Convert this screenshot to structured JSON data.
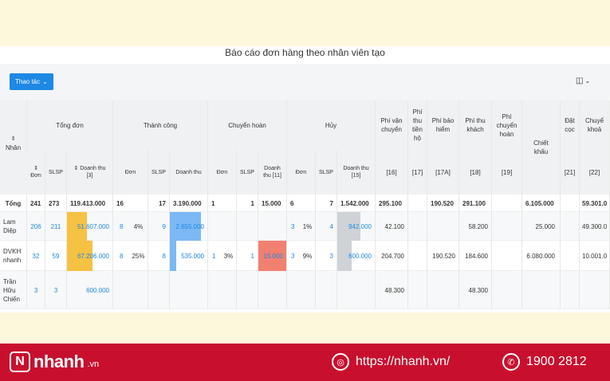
{
  "report": {
    "title": "Báo cáo đơn hàng theo nhân viên tạo",
    "action_button": "Thao tác",
    "columns_icon": "columns-icon"
  },
  "headers": {
    "employee": "Nhân viên",
    "total_orders": "Tổng đơn",
    "success": "Thành công",
    "returning": "Chuyển hoàn",
    "cancelled": "Hủy",
    "ship_fee": "Phí vận chuyển",
    "ship_fee_code": "[16]",
    "collect_fee": "Phí thu tiền hộ",
    "collect_fee_code": "[17]",
    "insurance_fee": "Phí bảo hiểm",
    "insurance_fee_code": "[17A]",
    "customer_fee": "Phí thu khách",
    "customer_fee_code": "[18]",
    "return_fee": "Phí chuyển hoàn",
    "return_fee_code": "[19]",
    "discount": "Chiết khấu",
    "deposit": "Đặt cọc",
    "deposit_code": "[21]",
    "transfer": "Chuyể khoả",
    "transfer_code": "[22]",
    "sub_order": "Đơn",
    "sub_slsp": "SLSP",
    "sub_revenue": "Doanh thu",
    "sub_revenue_3": "Doanh thu [3]",
    "sub_revenue_11": "Doanh thu [11]",
    "sub_revenue_15": "Doanh thu [15]"
  },
  "total_row": {
    "label": "Tổng",
    "t_order": "241",
    "t_slsp": "273",
    "t_rev": "119.413.000",
    "s_order": "16",
    "s_slsp": "17",
    "s_rev": "3.190.000",
    "r_order": "1",
    "r_slsp": "1",
    "r_rev": "15.000",
    "c_order": "6",
    "c_slsp": "7",
    "c_rev": "1.542.000",
    "ship": "295.100",
    "collect": "",
    "insurance": "190.520",
    "customer": "291.100",
    "return_fee": "",
    "discount": "6.105.000",
    "deposit": "",
    "transfer": "59.301.0"
  },
  "rows": [
    {
      "name": "Lam Diệp",
      "t_order": "206",
      "t_slsp": "211",
      "t_rev": "51.607.000",
      "t_rev_frac": 0.43,
      "s_order": "8",
      "s_pct": "4%",
      "s_slsp": "9",
      "s_rev": "2.655.000",
      "s_rev_frac": 0.83,
      "r_order": "",
      "r_pct": "",
      "r_slsp": "",
      "r_rev": "",
      "r_rev_frac": 0,
      "c_order": "3",
      "c_pct": "1%",
      "c_slsp": "4",
      "c_rev": "942.000",
      "c_rev_frac": 0.61,
      "ship": "42.100",
      "collect": "",
      "insurance": "",
      "customer": "58.200",
      "return_fee": "",
      "discount": "25.000",
      "deposit": "",
      "transfer": "49.300.0"
    },
    {
      "name": "DVKH nhanh",
      "t_order": "32",
      "t_slsp": "59",
      "t_rev": "67.206.000",
      "t_rev_frac": 0.56,
      "s_order": "8",
      "s_pct": "25%",
      "s_slsp": "8",
      "s_rev": "535.000",
      "s_rev_frac": 0.17,
      "r_order": "1",
      "r_pct": "3%",
      "r_slsp": "1",
      "r_rev": "15.000",
      "r_rev_frac": 1.0,
      "c_order": "3",
      "c_pct": "9%",
      "c_slsp": "3",
      "c_rev": "600.000",
      "c_rev_frac": 0.39,
      "ship": "204.700",
      "collect": "",
      "insurance": "190.520",
      "customer": "184.600",
      "return_fee": "",
      "discount": "6.080.000",
      "deposit": "",
      "transfer": "10.001.0"
    },
    {
      "name": "Trần Hữu Chiến",
      "t_order": "3",
      "t_slsp": "3",
      "t_rev": "600.000",
      "t_rev_frac": 0,
      "s_order": "",
      "s_pct": "",
      "s_slsp": "",
      "s_rev": "",
      "s_rev_frac": 0,
      "r_order": "",
      "r_pct": "",
      "r_slsp": "",
      "r_rev": "",
      "r_rev_frac": 0,
      "c_order": "",
      "c_pct": "",
      "c_slsp": "",
      "c_rev": "",
      "c_rev_frac": 0,
      "ship": "48.300",
      "collect": "",
      "insurance": "",
      "customer": "48.300",
      "return_fee": "",
      "discount": "",
      "deposit": "",
      "transfer": ""
    }
  ],
  "bar_colors": {
    "total": "#f6c244",
    "success": "#7cb8f4",
    "returning": "#f08070",
    "cancelled": "#cfd2d6"
  },
  "footer": {
    "brand": "nhanh",
    "brand_suffix": ".vn",
    "website": "https://nhanh.vn/",
    "hotline": "1900 2812"
  }
}
